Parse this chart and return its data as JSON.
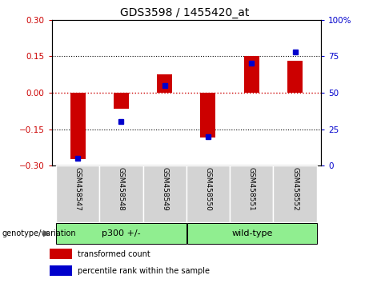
{
  "title": "GDS3598 / 1455420_at",
  "categories": [
    "GSM458547",
    "GSM458548",
    "GSM458549",
    "GSM458550",
    "GSM458551",
    "GSM458552"
  ],
  "red_values": [
    -0.275,
    -0.065,
    0.075,
    -0.185,
    0.152,
    0.133
  ],
  "blue_values": [
    5,
    30,
    55,
    20,
    70,
    78
  ],
  "ylim_left": [
    -0.3,
    0.3
  ],
  "ylim_right": [
    0,
    100
  ],
  "yticks_left": [
    -0.3,
    -0.15,
    0,
    0.15,
    0.3
  ],
  "yticks_right": [
    0,
    25,
    50,
    75,
    100
  ],
  "ytick_labels_right": [
    "0",
    "25",
    "50",
    "75",
    "100%"
  ],
  "red_color": "#cc0000",
  "blue_color": "#0000cc",
  "hline_color": "#cc0000",
  "dotted_color": "#000000",
  "group1_label": "p300 +/-",
  "group2_label": "wild-type",
  "group1_color": "#90ee90",
  "group2_color": "#90ee90",
  "group_label_prefix": "genotype/variation",
  "legend_red": "transformed count",
  "legend_blue": "percentile rank within the sample",
  "bar_width": 0.35,
  "tick_area_bg": "#d3d3d3",
  "title_fontsize": 10,
  "axis_fontsize": 7.5
}
